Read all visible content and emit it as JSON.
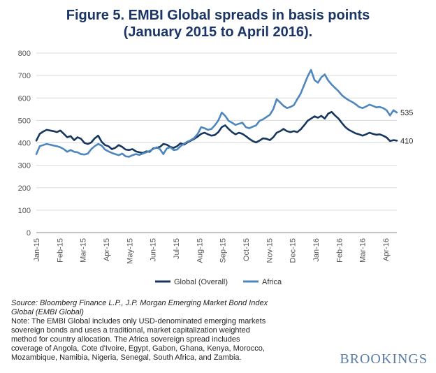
{
  "chart_data": {
    "type": "line",
    "title_line1": "Figure 5. EMBI Global spreads in basis points",
    "title_line2": "(January 2015 to April 2016).",
    "xlabel": "",
    "ylabel": "",
    "ylim": [
      0,
      800
    ],
    "y_ticks": [
      0,
      100,
      200,
      300,
      400,
      500,
      600,
      700,
      800
    ],
    "x_ticks": [
      "Jan-15",
      "Feb-15",
      "Mar-15",
      "Apr-15",
      "May-15",
      "Jun-15",
      "Jul-15",
      "Aug-15",
      "Sep-15",
      "Oct-15",
      "Nov-15",
      "Dec-15",
      "Jan-16",
      "Feb-16",
      "Mar-16",
      "Apr-16"
    ],
    "grid": true,
    "legend_position": "bottom",
    "series": [
      {
        "name": "Global (Overall)",
        "color": "#17365d",
        "end_label": "410",
        "values": [
          410,
          440,
          450,
          458,
          455,
          452,
          448,
          455,
          440,
          425,
          430,
          412,
          425,
          418,
          400,
          395,
          402,
          420,
          432,
          405,
          390,
          385,
          372,
          378,
          390,
          382,
          370,
          368,
          372,
          362,
          358,
          355,
          362,
          360,
          375,
          378,
          382,
          395,
          392,
          382,
          378,
          385,
          398,
          392,
          402,
          410,
          418,
          428,
          440,
          445,
          438,
          432,
          435,
          448,
          470,
          478,
          462,
          448,
          438,
          445,
          440,
          430,
          418,
          408,
          402,
          410,
          420,
          418,
          412,
          425,
          445,
          452,
          462,
          452,
          448,
          452,
          448,
          460,
          478,
          498,
          508,
          518,
          512,
          520,
          508,
          530,
          538,
          522,
          508,
          488,
          470,
          458,
          450,
          442,
          438,
          432,
          438,
          445,
          440,
          436,
          438,
          432,
          424,
          408,
          412,
          410
        ]
      },
      {
        "name": "Africa",
        "color": "#4e86bd",
        "end_label": "535",
        "values": [
          350,
          385,
          390,
          395,
          392,
          388,
          385,
          380,
          372,
          360,
          368,
          360,
          358,
          350,
          348,
          352,
          372,
          385,
          395,
          388,
          370,
          362,
          355,
          350,
          345,
          352,
          340,
          338,
          345,
          350,
          346,
          352,
          358,
          364,
          372,
          380,
          372,
          350,
          375,
          380,
          368,
          370,
          385,
          396,
          405,
          412,
          422,
          440,
          470,
          465,
          458,
          462,
          478,
          500,
          535,
          520,
          498,
          490,
          480,
          485,
          490,
          470,
          465,
          472,
          478,
          498,
          505,
          515,
          525,
          550,
          595,
          580,
          565,
          555,
          560,
          568,
          595,
          620,
          658,
          695,
          725,
          680,
          668,
          692,
          705,
          678,
          660,
          645,
          630,
          612,
          600,
          590,
          582,
          572,
          560,
          555,
          562,
          570,
          565,
          558,
          560,
          555,
          545,
          522,
          545,
          535
        ]
      }
    ]
  },
  "notes": {
    "source_line1": "Source: Bloomberg Finance L.P., J.P. Morgan Emerging Market Bond Index",
    "source_line2": "Global (EMBI Global)",
    "note_line1": "Note: The EMBI Global includes only USD-denominated emerging markets",
    "note_line2": "sovereign bonds and uses a traditional, market capitalization weighted",
    "note_line3": "method for country allocation. The Africa sovereign spread includes",
    "note_line4": "coverage of Angola, Cote d'Ivoire, Egypt, Gabon, Ghana, Kenya, Morocco,",
    "note_line5": "Mozambique, Namibia, Nigeria, Senegal, South Africa, and Zambia."
  },
  "brand": "BROOKINGS"
}
